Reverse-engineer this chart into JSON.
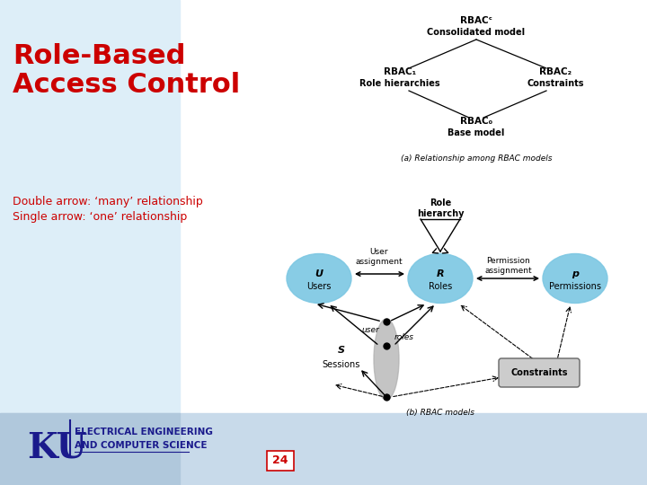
{
  "title_line1": "Role-Based",
  "title_line2": "Access Control",
  "title_color": "#cc0000",
  "subtitle_line1": "Double arrow: ‘many’ relationship",
  "subtitle_line2": "Single arrow: ‘one’ relationship",
  "subtitle_color": "#cc0000",
  "bg_color": "#ffffff",
  "left_panel_color": "#ddeef8",
  "footer_bg": "#c8daea",
  "footer_left_bg": "#b0c8dc",
  "page_num": "24",
  "page_num_color": "#cc0000",
  "ku_text_line1": "ELECTRICAL ENGINEERING",
  "ku_text_line2": "AND COMPUTER SCIENCE",
  "rbac_c_label": "RBACᶜ",
  "rbac_c_sub": "Consolidated model",
  "rbac1_label": "RBAC₁",
  "rbac1_sub": "Role hierarchies",
  "rbac2_label": "RBAC₂",
  "rbac2_sub": "Constraints",
  "rbac0_label": "RBAC₀",
  "rbac0_sub": "Base model",
  "caption_a": "(a) Relationship among RBAC models",
  "caption_b": "(b) RBAC models",
  "role_hier": "Role\nhierarchy",
  "user_assign": "User\nassignment",
  "perm_assign": "Permission\nassignment",
  "users_label": "Users",
  "roles_label": "Roles",
  "perms_label": "Permissions",
  "sessions_label": "Sessions",
  "constraints_label": "Constraints",
  "u_label": "U",
  "r_label": "R",
  "p_label": "p",
  "s_label": "S",
  "user_label_small": "user",
  "roles_label_small": "roles",
  "ellipse_color": "#7ec8e3",
  "sessions_ellipse_color": "#b0b0b0",
  "ku_color": "#1a1a8c",
  "title_fontsize": 22,
  "subtitle_fontsize": 9
}
